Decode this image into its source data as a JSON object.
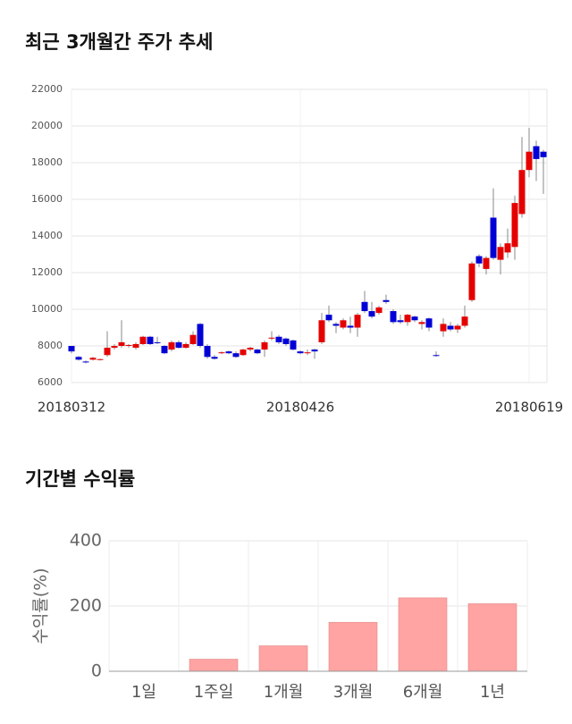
{
  "chart_data": [
    {
      "type": "candlestick",
      "title": "최근 3개월간 주가 추세",
      "categories": [
        "20180312",
        null,
        null,
        null,
        null,
        null,
        null,
        null,
        null,
        null,
        null,
        null,
        null,
        null,
        null,
        null,
        null,
        null,
        null,
        null,
        null,
        null,
        null,
        null,
        null,
        null,
        null,
        null,
        null,
        null,
        null,
        null,
        "20180426",
        null,
        null,
        null,
        null,
        null,
        null,
        null,
        null,
        null,
        null,
        null,
        null,
        null,
        null,
        null,
        null,
        null,
        null,
        null,
        null,
        null,
        null,
        null,
        null,
        null,
        null,
        null,
        null,
        null,
        null,
        null,
        "20180619",
        null,
        null
      ],
      "open": [
        8000,
        7400,
        7150,
        7250,
        7250,
        7500,
        7900,
        8000,
        8000,
        7900,
        8100,
        8500,
        8200,
        8000,
        7800,
        8200,
        7900,
        8100,
        9200,
        8000,
        7400,
        7600,
        7700,
        7600,
        7500,
        7800,
        7800,
        7800,
        8400,
        8500,
        8400,
        8300,
        7700,
        7600,
        7800,
        8200,
        9700,
        9200,
        9000,
        9100,
        9000,
        10400,
        9900,
        9800,
        10500,
        9900,
        9400,
        9300,
        9600,
        9200,
        9500,
        7500,
        8800,
        9100,
        8900,
        9100,
        10500,
        12900,
        12200,
        15000,
        12700,
        13100,
        13400,
        15200,
        17600,
        18900,
        18600
      ],
      "high": [
        8000,
        7450,
        7200,
        7400,
        7300,
        8800,
        8100,
        9400,
        8100,
        8200,
        8550,
        8550,
        8500,
        8050,
        8300,
        8300,
        8200,
        8800,
        9250,
        8100,
        7500,
        7700,
        7750,
        7700,
        7850,
        7950,
        7850,
        8300,
        8800,
        8600,
        8450,
        8350,
        7750,
        7800,
        7850,
        9800,
        10200,
        9300,
        9500,
        9600,
        9800,
        11000,
        10400,
        10200,
        10800,
        10000,
        9700,
        9750,
        9650,
        9400,
        9550,
        7700,
        9500,
        9300,
        9200,
        10200,
        12600,
        13000,
        12900,
        16600,
        13600,
        14400,
        16200,
        19400,
        19900,
        19200,
        18700
      ],
      "low": [
        7600,
        7200,
        7050,
        7200,
        7200,
        7400,
        7800,
        7900,
        7900,
        7800,
        8050,
        8050,
        8100,
        7550,
        7700,
        7850,
        7850,
        8050,
        7900,
        7300,
        7250,
        7550,
        7550,
        7350,
        7450,
        7700,
        7550,
        7400,
        8300,
        8100,
        8000,
        7750,
        7550,
        7500,
        7300,
        8100,
        9300,
        8700,
        8900,
        8700,
        8500,
        9800,
        9500,
        9700,
        10300,
        9200,
        9200,
        9100,
        9300,
        8900,
        8800,
        7400,
        8500,
        8800,
        8700,
        9000,
        10400,
        12300,
        11900,
        12700,
        11900,
        12800,
        12700,
        15000,
        17200,
        17000,
        16300
      ],
      "close": [
        7700,
        7250,
        7100,
        7350,
        7280,
        7900,
        8000,
        8200,
        8050,
        8100,
        8500,
        8100,
        8150,
        7600,
        8200,
        7900,
        8100,
        8600,
        8000,
        7400,
        7300,
        7650,
        7600,
        7400,
        7800,
        7900,
        7600,
        8200,
        8450,
        8200,
        8100,
        7800,
        7600,
        7650,
        7700,
        9400,
        9400,
        9100,
        9400,
        9000,
        9700,
        9900,
        9600,
        10100,
        10400,
        9300,
        9300,
        9700,
        9400,
        9300,
        9000,
        7450,
        9200,
        8900,
        9100,
        9600,
        12500,
        12500,
        12800,
        12800,
        13400,
        13600,
        15800,
        17600,
        18600,
        18200,
        18300
      ],
      "up_color": "#e50000",
      "down_color": "#0000d6",
      "ylim": [
        6000,
        22000
      ],
      "yticks": [
        6000,
        8000,
        10000,
        12000,
        14000,
        16000,
        18000,
        20000,
        22000
      ],
      "grid": true
    },
    {
      "type": "bar",
      "title": "기간별 수익률",
      "y_label": "수익률(%)",
      "categories": [
        "1일",
        "1주일",
        "1개월",
        "3개월",
        "6개월",
        "1년"
      ],
      "values": [
        0,
        37,
        78,
        150,
        225,
        207
      ],
      "color": "#ffa3a3",
      "ylim": [
        0,
        400
      ],
      "yticks": [
        0,
        200,
        400
      ],
      "grid": true
    }
  ]
}
